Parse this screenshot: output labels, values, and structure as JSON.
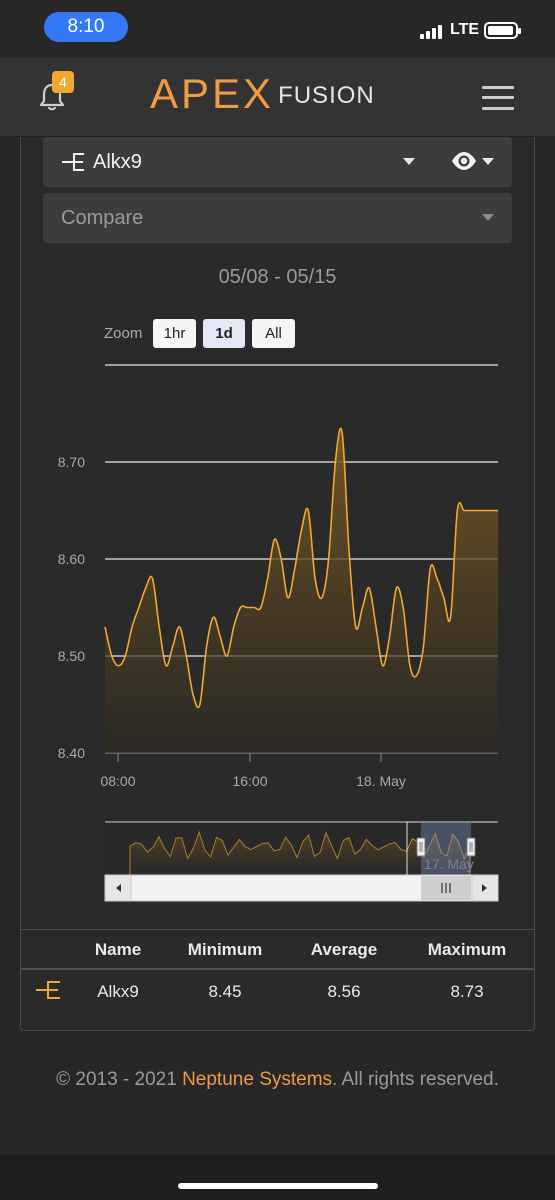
{
  "status_bar": {
    "time": "8:10",
    "network": "LTE"
  },
  "header": {
    "notification_count": "4",
    "logo_primary": "APEX",
    "logo_secondary": "FUSION"
  },
  "probe_select": {
    "selected": "Alkx9",
    "icon": "probe-type-icon"
  },
  "compare_select": {
    "placeholder": "Compare"
  },
  "date_range": "05/08 - 05/15",
  "zoom": {
    "label": "Zoom",
    "options": [
      "1hr",
      "1d",
      "All"
    ],
    "selected": "1d"
  },
  "chart_data": {
    "type": "area",
    "series": [
      {
        "name": "Alkx9",
        "color": "#f0a830",
        "x": [
          0,
          0.5,
          1,
          1.5,
          2,
          2.5,
          3,
          3.5,
          4,
          4.5,
          5,
          5.5,
          6,
          6.5,
          7,
          7.5,
          8,
          8.5,
          9,
          9.5,
          10,
          10.5,
          11,
          11.5,
          12,
          12.5,
          13,
          13.5,
          14,
          14.5,
          15,
          15.5,
          16,
          16.5,
          17,
          17.5,
          18,
          18.5,
          19,
          19.5,
          20,
          20.5,
          21,
          21.5,
          22,
          22.5,
          23,
          23.5,
          24,
          24.5,
          25,
          25.5,
          26,
          26.5,
          27,
          27.5,
          28,
          28.5,
          29
        ],
        "values": [
          8.53,
          8.5,
          8.49,
          8.5,
          8.53,
          8.55,
          8.57,
          8.58,
          8.53,
          8.49,
          8.51,
          8.53,
          8.5,
          8.46,
          8.45,
          8.51,
          8.54,
          8.52,
          8.5,
          8.53,
          8.55,
          8.55,
          8.55,
          8.55,
          8.58,
          8.62,
          8.6,
          8.56,
          8.59,
          8.63,
          8.65,
          8.58,
          8.56,
          8.6,
          8.7,
          8.73,
          8.61,
          8.53,
          8.55,
          8.57,
          8.53,
          8.49,
          8.52,
          8.57,
          8.55,
          8.49,
          8.48,
          8.51,
          8.59,
          8.58,
          8.56,
          8.54,
          8.65,
          8.65,
          8.65,
          8.65,
          8.65,
          8.65,
          8.65
        ]
      }
    ],
    "x_ticks": [
      "08:00",
      "16:00",
      "18. May"
    ],
    "y_ticks": [
      "8.40",
      "8.50",
      "8.60",
      "8.70"
    ],
    "ylim": [
      8.4,
      8.8
    ],
    "grid": true,
    "navigator": {
      "label": "17. May",
      "scrollbar_icon": "scroll-grip-icon"
    }
  },
  "stats_table": {
    "headers": [
      "Name",
      "Minimum",
      "Average",
      "Maximum"
    ],
    "rows": [
      {
        "name": "Alkx9",
        "min": "8.45",
        "avg": "8.56",
        "max": "8.73"
      }
    ]
  },
  "footer": {
    "prefix": "© 2013 - 2021 ",
    "link": "Neptune Systems",
    "suffix": ". All rights reserved."
  }
}
